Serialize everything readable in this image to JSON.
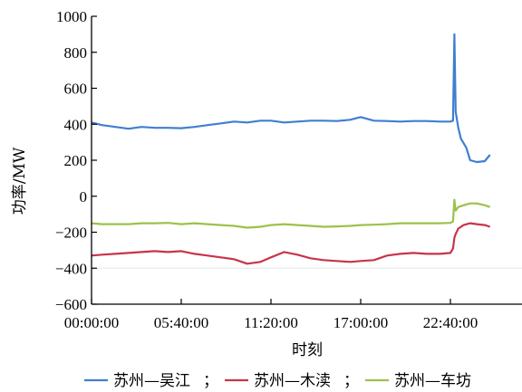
{
  "chart_data": {
    "type": "line",
    "xlabel": "时刻",
    "ylabel": "功率/MW",
    "x_ticks": [
      "00:00:00",
      "05:40:00",
      "11:20:00",
      "17:00:00",
      "22:40:00"
    ],
    "ylim": [
      -600,
      1000
    ],
    "y_ticks": [
      -600,
      -400,
      -200,
      0,
      200,
      400,
      600,
      800,
      1000
    ],
    "legend_position": "bottom",
    "legend_separator": "；",
    "colors": {
      "苏州—吴江": "#3f7fd0",
      "苏州—木渎": "#c8344a",
      "苏州—车坊": "#9bc24b"
    },
    "series": [
      {
        "name": "苏州—吴江",
        "color": "#3f7fd0",
        "x": [
          "00:00:00",
          "00:40:00",
          "01:30:00",
          "02:20:00",
          "03:10:00",
          "04:00:00",
          "04:50:00",
          "05:40:00",
          "06:30:00",
          "07:20:00",
          "08:10:00",
          "09:00:00",
          "09:50:00",
          "10:40:00",
          "11:20:00",
          "12:10:00",
          "13:00:00",
          "13:50:00",
          "14:40:00",
          "15:30:00",
          "16:20:00",
          "17:00:00",
          "17:50:00",
          "18:40:00",
          "19:30:00",
          "20:20:00",
          "21:10:00",
          "22:00:00",
          "22:40:00",
          "22:50:00",
          "22:55:00",
          "23:00:00",
          "23:10:00",
          "23:20:00",
          "23:40:00",
          "23:55:00",
          "24:20:00",
          "24:50:00",
          "25:10:00"
        ],
        "values": [
          410,
          395,
          385,
          375,
          385,
          380,
          380,
          378,
          385,
          395,
          405,
          415,
          410,
          420,
          420,
          410,
          415,
          420,
          420,
          418,
          425,
          440,
          420,
          418,
          415,
          418,
          418,
          415,
          415,
          420,
          900,
          470,
          380,
          320,
          270,
          200,
          190,
          195,
          230
        ]
      },
      {
        "name": "苏州—木渎",
        "color": "#c8344a",
        "x": [
          "00:00:00",
          "00:40:00",
          "01:30:00",
          "02:20:00",
          "03:10:00",
          "04:00:00",
          "04:50:00",
          "05:40:00",
          "06:30:00",
          "07:20:00",
          "08:10:00",
          "09:00:00",
          "09:50:00",
          "10:40:00",
          "11:20:00",
          "12:10:00",
          "13:00:00",
          "13:50:00",
          "14:40:00",
          "15:30:00",
          "16:20:00",
          "17:00:00",
          "17:50:00",
          "18:40:00",
          "19:30:00",
          "20:20:00",
          "21:10:00",
          "22:00:00",
          "22:40:00",
          "22:50:00",
          "22:55:00",
          "23:00:00",
          "23:10:00",
          "23:30:00",
          "23:55:00",
          "24:20:00",
          "24:50:00",
          "25:10:00"
        ],
        "values": [
          -330,
          -325,
          -320,
          -315,
          -310,
          -305,
          -310,
          -305,
          -320,
          -330,
          -340,
          -350,
          -375,
          -365,
          -340,
          -310,
          -325,
          -345,
          -355,
          -360,
          -365,
          -360,
          -355,
          -330,
          -320,
          -315,
          -320,
          -320,
          -315,
          -290,
          -230,
          -210,
          -180,
          -160,
          -150,
          -155,
          -160,
          -170
        ]
      },
      {
        "name": "苏州—车坊",
        "color": "#9bc24b",
        "x": [
          "00:00:00",
          "00:40:00",
          "01:30:00",
          "02:20:00",
          "03:10:00",
          "04:00:00",
          "04:50:00",
          "05:40:00",
          "06:30:00",
          "07:20:00",
          "08:10:00",
          "09:00:00",
          "09:50:00",
          "10:40:00",
          "11:20:00",
          "12:10:00",
          "13:00:00",
          "13:50:00",
          "14:40:00",
          "15:30:00",
          "16:20:00",
          "17:00:00",
          "17:50:00",
          "18:40:00",
          "19:30:00",
          "20:20:00",
          "21:10:00",
          "22:00:00",
          "22:40:00",
          "22:50:00",
          "22:55:00",
          "23:00:00",
          "23:10:00",
          "23:30:00",
          "23:55:00",
          "24:20:00",
          "24:50:00",
          "25:10:00"
        ],
        "values": [
          -150,
          -155,
          -155,
          -155,
          -150,
          -150,
          -148,
          -155,
          -150,
          -155,
          -160,
          -165,
          -175,
          -170,
          -160,
          -155,
          -160,
          -165,
          -170,
          -168,
          -165,
          -160,
          -158,
          -155,
          -150,
          -150,
          -150,
          -150,
          -148,
          -140,
          -20,
          -80,
          -60,
          -50,
          -40,
          -40,
          -50,
          -60
        ]
      }
    ]
  }
}
